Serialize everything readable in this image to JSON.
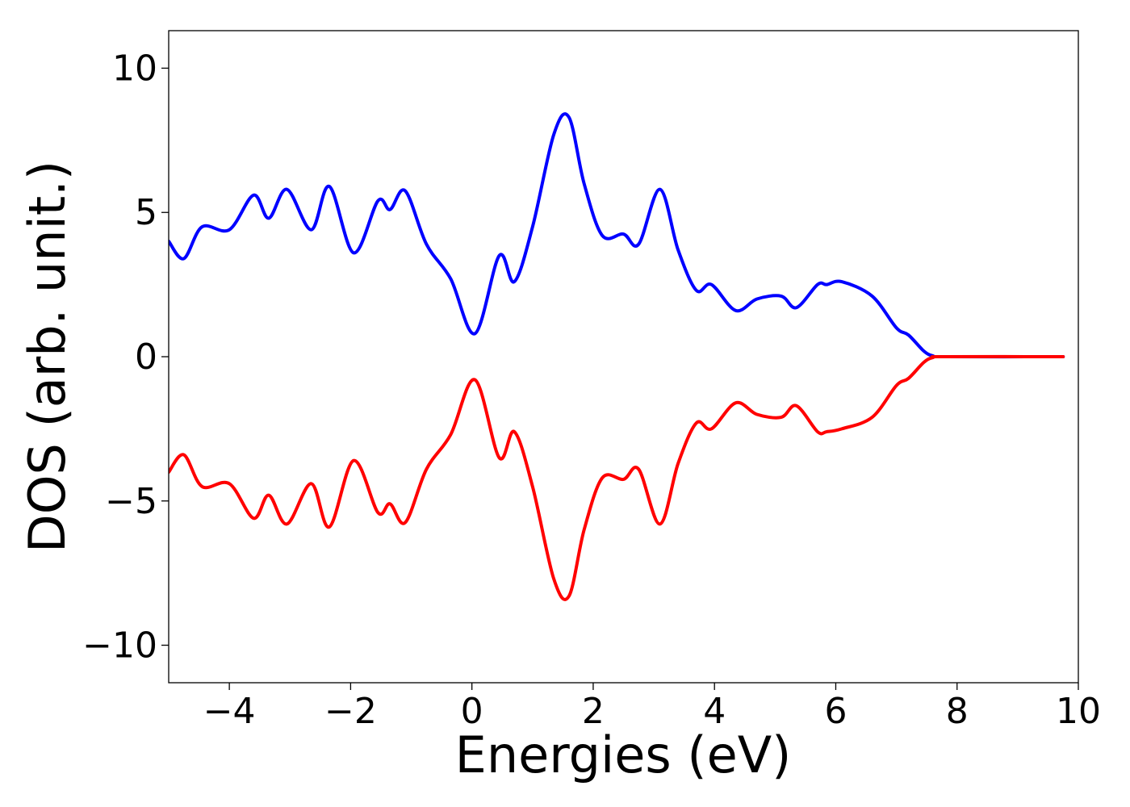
{
  "chart_data": {
    "type": "line",
    "title": "",
    "xlabel": "Energies (eV)",
    "ylabel": "DOS (arb. unit.)",
    "xlim": [
      -5,
      10
    ],
    "ylim": [
      -11.3,
      11.3
    ],
    "grid": false,
    "legend": "none",
    "x_ticks": [
      {
        "value": -4,
        "label": "−4"
      },
      {
        "value": -2,
        "label": "−2"
      },
      {
        "value": 0,
        "label": "0"
      },
      {
        "value": 2,
        "label": "2"
      },
      {
        "value": 4,
        "label": "4"
      },
      {
        "value": 6,
        "label": "6"
      },
      {
        "value": 8,
        "label": "8"
      },
      {
        "value": 10,
        "label": "10"
      }
    ],
    "y_ticks": [
      {
        "value": 10,
        "label": "10"
      },
      {
        "value": 5,
        "label": "5"
      },
      {
        "value": 0,
        "label": "0"
      },
      {
        "value": -5,
        "label": "−5"
      },
      {
        "value": -10,
        "label": "−10"
      }
    ],
    "series": [
      {
        "color": "#0000ff",
        "x": [
          -5.0,
          -4.75,
          -4.45,
          -4.0,
          -3.6,
          -3.35,
          -3.05,
          -2.65,
          -2.35,
          -1.95,
          -1.55,
          -1.35,
          -1.1,
          -0.75,
          -0.35,
          0.05,
          0.45,
          0.7,
          1.0,
          1.35,
          1.6,
          1.85,
          2.15,
          2.5,
          2.75,
          3.1,
          3.4,
          3.7,
          3.95,
          4.35,
          4.7,
          5.1,
          5.35,
          5.7,
          5.85,
          6.1,
          6.6,
          7.0,
          7.2,
          7.45,
          7.6,
          7.8,
          9.75
        ],
        "y": [
          4.0,
          3.4,
          4.5,
          4.4,
          5.6,
          4.8,
          5.8,
          4.4,
          5.9,
          3.6,
          5.4,
          5.1,
          5.75,
          3.9,
          2.7,
          0.8,
          3.5,
          2.6,
          4.5,
          7.7,
          8.3,
          6.0,
          4.2,
          4.25,
          3.9,
          5.8,
          3.7,
          2.3,
          2.5,
          1.6,
          2.0,
          2.1,
          1.7,
          2.5,
          2.5,
          2.6,
          2.1,
          1.0,
          0.75,
          0.2,
          0.03,
          0.0,
          0.0
        ]
      },
      {
        "color": "#ff0000",
        "x": [
          -5.0,
          -4.75,
          -4.45,
          -4.0,
          -3.6,
          -3.35,
          -3.05,
          -2.65,
          -2.35,
          -1.95,
          -1.55,
          -1.35,
          -1.1,
          -0.75,
          -0.35,
          0.05,
          0.45,
          0.7,
          1.0,
          1.35,
          1.6,
          1.85,
          2.15,
          2.5,
          2.75,
          3.1,
          3.4,
          3.7,
          3.95,
          4.35,
          4.7,
          5.1,
          5.35,
          5.7,
          5.85,
          6.1,
          6.6,
          7.0,
          7.2,
          7.45,
          7.6,
          7.8,
          9.75
        ],
        "y": [
          -4.0,
          -3.4,
          -4.5,
          -4.4,
          -5.6,
          -4.8,
          -5.8,
          -4.4,
          -5.9,
          -3.6,
          -5.4,
          -5.1,
          -5.75,
          -3.9,
          -2.7,
          -0.8,
          -3.5,
          -2.6,
          -4.5,
          -7.7,
          -8.3,
          -6.0,
          -4.2,
          -4.25,
          -3.9,
          -5.8,
          -3.7,
          -2.3,
          -2.5,
          -1.6,
          -2.0,
          -2.1,
          -1.7,
          -2.6,
          -2.6,
          -2.5,
          -2.1,
          -1.0,
          -0.75,
          -0.2,
          -0.03,
          0.0,
          0.0
        ]
      }
    ]
  }
}
